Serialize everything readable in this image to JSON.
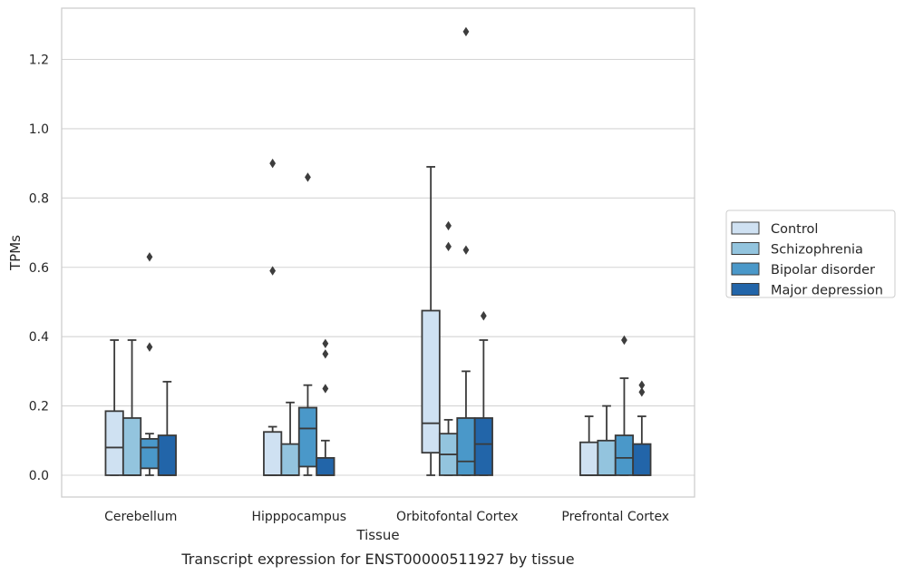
{
  "chart_data": {
    "type": "box",
    "caption": "Transcript expression for ENST00000511927 by tissue",
    "xlabel": "Tissue",
    "ylabel": "TPMs",
    "ylim": [
      -0.062,
      1.35
    ],
    "yticks": [
      "0.0",
      "0.2",
      "0.4",
      "0.6",
      "0.8",
      "1.0",
      "1.2"
    ],
    "grid": true,
    "legend_position": "right",
    "categories": [
      "Cerebellum",
      "Hipppocampus",
      "Orbitofontal Cortex",
      "Prefrontal Cortex"
    ],
    "series": [
      {
        "name": "Control",
        "color": "#cfe1f2",
        "boxes": [
          {
            "whislo": 0.0,
            "q1": 0.0,
            "med": 0.08,
            "q3": 0.185,
            "whishi": 0.39,
            "fliers": []
          },
          {
            "whislo": 0.0,
            "q1": 0.0,
            "med": 0.0,
            "q3": 0.125,
            "whishi": 0.14,
            "fliers": [
              0.59,
              0.9
            ]
          },
          {
            "whislo": 0.0,
            "q1": 0.065,
            "med": 0.15,
            "q3": 0.475,
            "whishi": 0.89,
            "fliers": []
          },
          {
            "whislo": 0.0,
            "q1": 0.0,
            "med": 0.0,
            "q3": 0.095,
            "whishi": 0.17,
            "fliers": []
          }
        ]
      },
      {
        "name": "Schizophrenia",
        "color": "#93c4de",
        "boxes": [
          {
            "whislo": 0.0,
            "q1": 0.0,
            "med": 0.0,
            "q3": 0.165,
            "whishi": 0.39,
            "fliers": []
          },
          {
            "whislo": 0.0,
            "q1": 0.0,
            "med": 0.0,
            "q3": 0.09,
            "whishi": 0.21,
            "fliers": []
          },
          {
            "whislo": 0.0,
            "q1": 0.0,
            "med": 0.06,
            "q3": 0.12,
            "whishi": 0.16,
            "fliers": [
              0.66,
              0.72
            ]
          },
          {
            "whislo": 0.0,
            "q1": 0.0,
            "med": 0.0,
            "q3": 0.1,
            "whishi": 0.2,
            "fliers": []
          }
        ]
      },
      {
        "name": "Bipolar disorder",
        "color": "#4a98c9",
        "boxes": [
          {
            "whislo": 0.0,
            "q1": 0.02,
            "med": 0.08,
            "q3": 0.105,
            "whishi": 0.12,
            "fliers": [
              0.37,
              0.63
            ]
          },
          {
            "whislo": 0.0,
            "q1": 0.025,
            "med": 0.135,
            "q3": 0.195,
            "whishi": 0.26,
            "fliers": [
              0.86
            ]
          },
          {
            "whislo": 0.0,
            "q1": 0.0,
            "med": 0.04,
            "q3": 0.165,
            "whishi": 0.3,
            "fliers": [
              0.65,
              1.28
            ]
          },
          {
            "whislo": 0.0,
            "q1": 0.0,
            "med": 0.05,
            "q3": 0.115,
            "whishi": 0.28,
            "fliers": [
              0.39
            ]
          }
        ]
      },
      {
        "name": "Major depression",
        "color": "#2265a9",
        "boxes": [
          {
            "whislo": 0.0,
            "q1": 0.0,
            "med": 0.0,
            "q3": 0.115,
            "whishi": 0.27,
            "fliers": []
          },
          {
            "whislo": 0.0,
            "q1": 0.0,
            "med": 0.0,
            "q3": 0.05,
            "whishi": 0.1,
            "fliers": [
              0.25,
              0.35,
              0.38
            ]
          },
          {
            "whislo": 0.0,
            "q1": 0.0,
            "med": 0.09,
            "q3": 0.165,
            "whishi": 0.39,
            "fliers": [
              0.46
            ]
          },
          {
            "whislo": 0.0,
            "q1": 0.0,
            "med": 0.0,
            "q3": 0.09,
            "whishi": 0.17,
            "fliers": [
              0.24,
              0.26
            ]
          }
        ]
      }
    ]
  }
}
